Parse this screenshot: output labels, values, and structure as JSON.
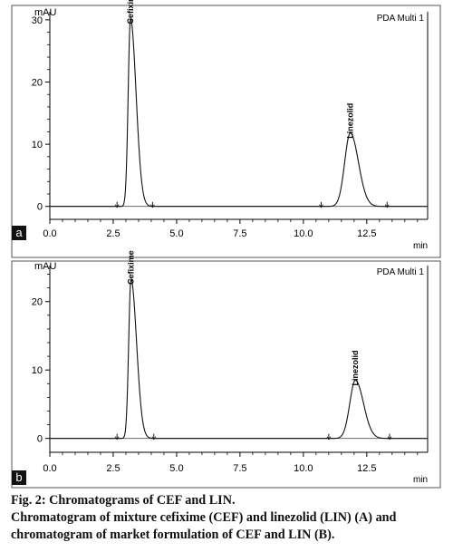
{
  "caption": {
    "line1": "Fig. 2: Chromatograms of CEF and LIN.",
    "line2": "Chromatogram of mixture cefixime (CEF) and linezolid (LIN) (A) and",
    "line3": "chromatogram of market formulation of CEF and LIN (B)."
  },
  "chart_data": [
    {
      "type": "line",
      "panel_label": "a",
      "legend": "PDA Multi 1",
      "ylabel": "mAU",
      "xlabel": "min",
      "xlim": [
        0,
        14.9
      ],
      "ylim": [
        -1.5,
        31
      ],
      "xticks": [
        "0.0",
        "2.5",
        "5.0",
        "7.5",
        "10.0",
        "12.5"
      ],
      "yticks": [
        "0",
        "10",
        "20",
        "30"
      ],
      "peaks": [
        {
          "name": "Cefixime",
          "rt": 3.18,
          "height": 30.2,
          "sigma": 0.09,
          "tail": 0.22,
          "start": 2.65,
          "end": 4.05
        },
        {
          "name": "Linezolid",
          "rt": 11.85,
          "height": 11.8,
          "sigma": 0.22,
          "tail": 0.32,
          "start": 10.7,
          "end": 13.3
        }
      ]
    },
    {
      "type": "line",
      "panel_label": "b",
      "legend": "PDA Multi 1",
      "ylabel": "mAU",
      "xlabel": "min",
      "xlim": [
        0,
        14.9
      ],
      "ylim": [
        -1.5,
        25
      ],
      "xticks": [
        "0.0",
        "2.5",
        "5.0",
        "7.5",
        "10.0",
        "12.5"
      ],
      "yticks": [
        "0",
        "10",
        "20"
      ],
      "peaks": [
        {
          "name": "Cefixime",
          "rt": 3.2,
          "height": 23.3,
          "sigma": 0.09,
          "tail": 0.22,
          "start": 2.65,
          "end": 4.1
        },
        {
          "name": "Linezolid",
          "rt": 12.05,
          "height": 8.5,
          "sigma": 0.22,
          "tail": 0.32,
          "start": 11.0,
          "end": 13.4
        }
      ]
    }
  ]
}
